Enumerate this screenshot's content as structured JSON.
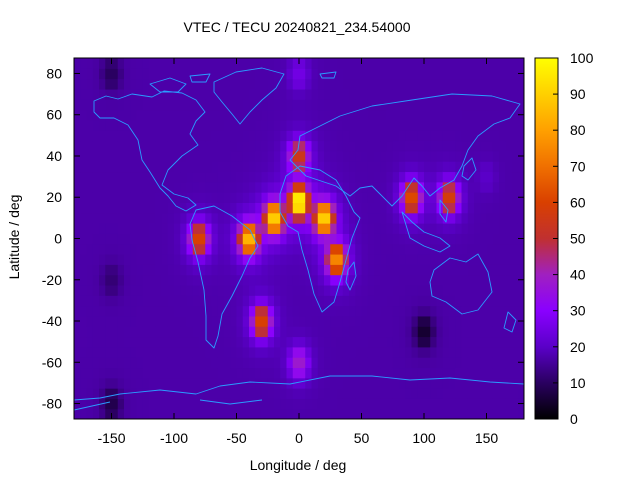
{
  "chart_data": {
    "type": "heatmap",
    "title": "VTEC / TECU 20240821_234.54000",
    "xlabel": "Longitude / deg",
    "ylabel": "Latitude / deg",
    "xlim": [
      -180,
      180
    ],
    "ylim": [
      -87.5,
      87.5
    ],
    "x_ticks": [
      -150,
      -100,
      -50,
      0,
      50,
      100,
      150
    ],
    "y_ticks": [
      -80,
      -60,
      -40,
      -20,
      0,
      20,
      40,
      60,
      80
    ],
    "x_tick_labels": [
      "-150",
      "-100",
      "-50",
      "0",
      "50",
      "100",
      "150"
    ],
    "y_tick_labels": [
      "-80",
      "-60",
      "-40",
      "-20",
      "0",
      "20",
      "40",
      "60",
      "80"
    ],
    "colorbar": {
      "min": 0,
      "max": 100,
      "ticks": [
        0,
        10,
        20,
        30,
        40,
        50,
        60,
        70,
        80,
        90,
        100
      ],
      "tick_labels": [
        "0",
        "10",
        "20",
        "30",
        "40",
        "50",
        "60",
        "70",
        "80",
        "90",
        "100"
      ],
      "palette": [
        "#000000",
        "#2a0060",
        "#5a00c8",
        "#8a00ff",
        "#a020c0",
        "#c03030",
        "#d94000",
        "#f07000",
        "#ffa000",
        "#ffd000",
        "#ffff00"
      ]
    },
    "grid": false,
    "background_tec": 17,
    "sample_points": [
      {
        "lon": 0,
        "lat": 18,
        "tec": 98
      },
      {
        "lon": -20,
        "lat": 10,
        "tec": 90
      },
      {
        "lon": 20,
        "lat": 10,
        "tec": 90
      },
      {
        "lon": -40,
        "lat": 0,
        "tec": 85
      },
      {
        "lon": 30,
        "lat": -10,
        "tec": 75
      },
      {
        "lon": 90,
        "lat": 20,
        "tec": 62
      },
      {
        "lon": 120,
        "lat": 20,
        "tec": 58
      },
      {
        "lon": -80,
        "lat": 0,
        "tec": 60
      },
      {
        "lon": -30,
        "lat": -40,
        "tec": 60
      },
      {
        "lon": 0,
        "lat": 40,
        "tec": 55
      },
      {
        "lon": 0,
        "lat": -60,
        "tec": 38
      },
      {
        "lon": -150,
        "lat": -20,
        "tec": 12
      },
      {
        "lon": 100,
        "lat": -45,
        "tec": 5
      },
      {
        "lon": 150,
        "lat": 30,
        "tec": 20
      },
      {
        "lon": -150,
        "lat": 80,
        "tec": 10
      },
      {
        "lon": 0,
        "lat": 80,
        "tec": 25
      },
      {
        "lon": -150,
        "lat": -80,
        "tec": 8
      }
    ],
    "overlay": "coastlines"
  }
}
